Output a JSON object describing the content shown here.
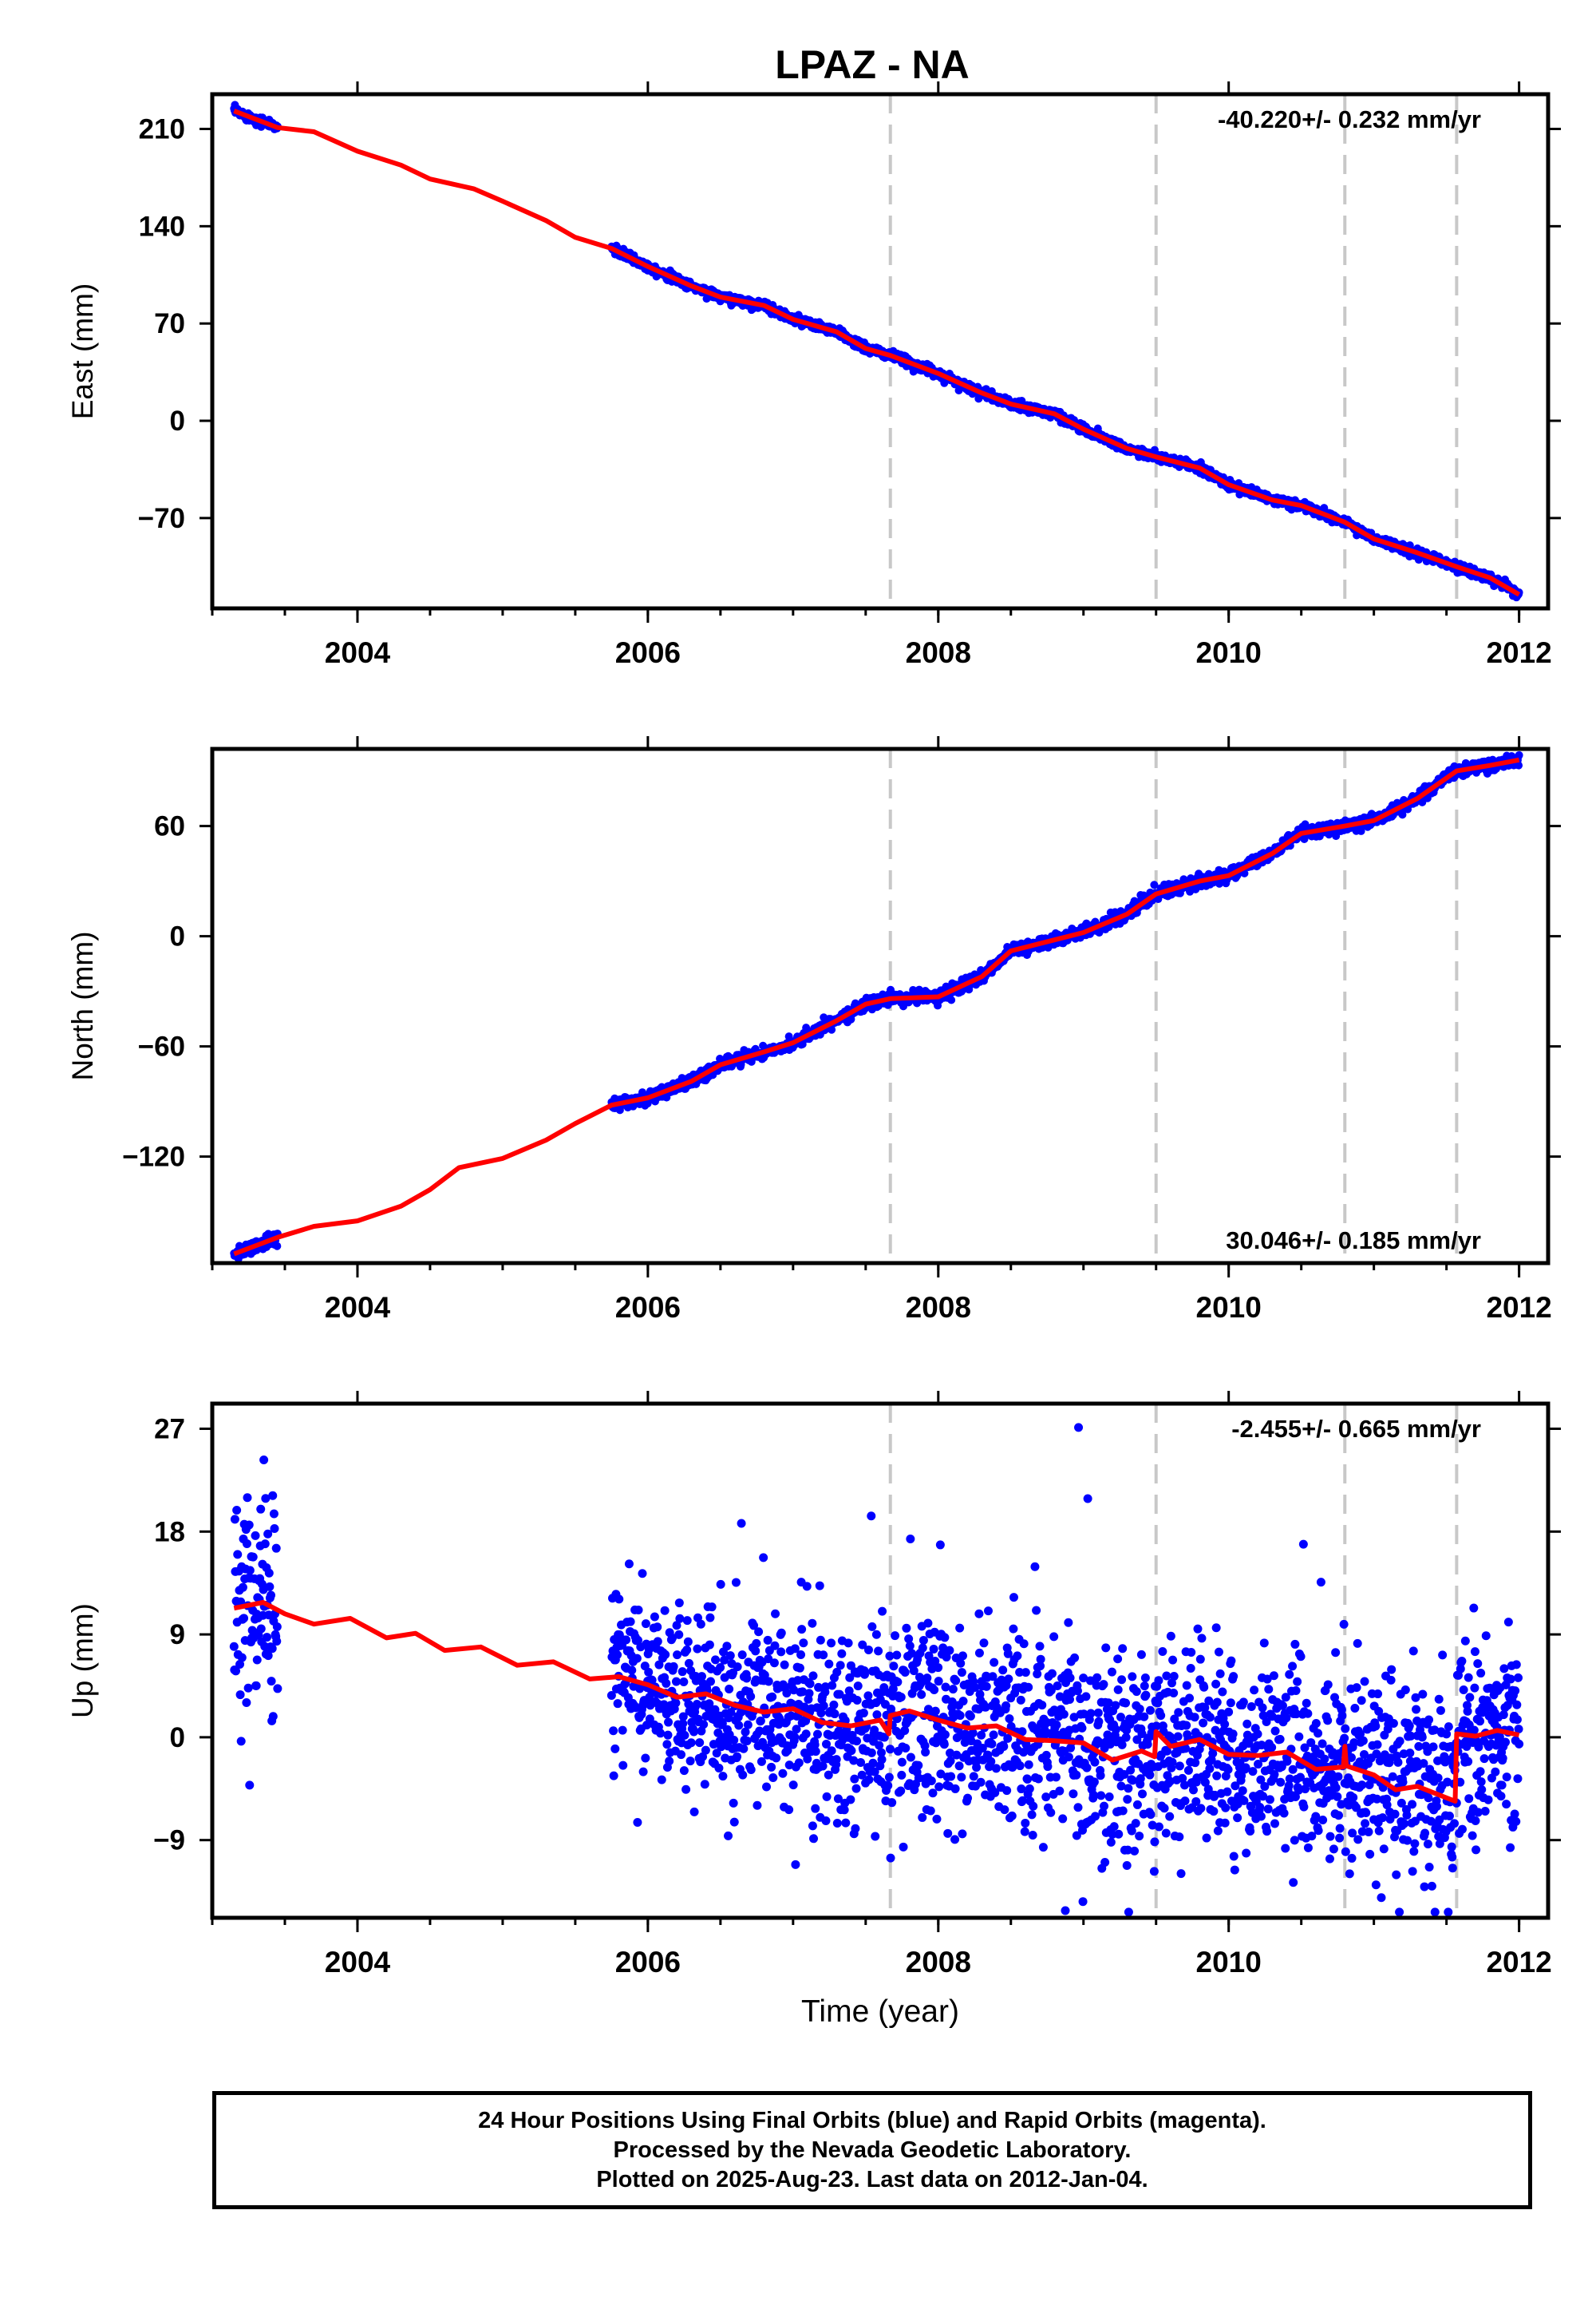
{
  "title": "LPAZ - NA",
  "colors": {
    "data": "#0000ff",
    "model": "#ff0000",
    "equipment_change": "#c8c8c8",
    "frame": "#000000"
  },
  "chart_data": [
    {
      "type": "scatter",
      "panel": "east",
      "ylabel": "East (mm)",
      "xlabel": "",
      "rate_label": "-40.220+/- 0.232 mm/yr",
      "xlim": [
        2003.0,
        2012.2
      ],
      "ylim": [
        -135,
        235
      ],
      "yticks": [
        210,
        140,
        70,
        0,
        -70
      ],
      "xticks": [
        2004,
        2006,
        2008,
        2010,
        2012
      ],
      "vlines": [
        2007.67,
        2009.5,
        2010.8,
        2011.57
      ],
      "segments": [
        {
          "start": 2003.15,
          "end": 2003.45,
          "y0": 224,
          "y1": 213,
          "noise": 1.6
        },
        {
          "start": 2005.75,
          "end": 2012.0,
          "y0": 124,
          "y1": -127,
          "noise": 1.6
        }
      ],
      "series": [
        {
          "name": "24 hour positions",
          "model": [
            [
              2003.15,
              223
            ],
            [
              2003.45,
              211
            ],
            [
              2003.7,
              208
            ],
            [
              2004.0,
              194
            ],
            [
              2004.3,
              184
            ],
            [
              2004.5,
              174
            ],
            [
              2004.8,
              167
            ],
            [
              2005.0,
              158
            ],
            [
              2005.3,
              144
            ],
            [
              2005.5,
              132
            ],
            [
              2005.75,
              124
            ],
            [
              2006.0,
              111
            ],
            [
              2006.3,
              97
            ],
            [
              2006.5,
              89
            ],
            [
              2006.8,
              83
            ],
            [
              2007.0,
              73
            ],
            [
              2007.3,
              64
            ],
            [
              2007.5,
              52
            ],
            [
              2007.67,
              47
            ],
            [
              2008.0,
              34
            ],
            [
              2008.3,
              20
            ],
            [
              2008.5,
              12
            ],
            [
              2008.8,
              5
            ],
            [
              2009.0,
              -6
            ],
            [
              2009.3,
              -20
            ],
            [
              2009.5,
              -26
            ],
            [
              2009.8,
              -34
            ],
            [
              2010.0,
              -46
            ],
            [
              2010.3,
              -57
            ],
            [
              2010.5,
              -61
            ],
            [
              2010.8,
              -73
            ],
            [
              2011.0,
              -85
            ],
            [
              2011.3,
              -95
            ],
            [
              2011.57,
              -105
            ],
            [
              2011.8,
              -113
            ],
            [
              2012.0,
              -125
            ]
          ]
        }
      ]
    },
    {
      "type": "scatter",
      "panel": "north",
      "ylabel": "North (mm)",
      "xlabel": "",
      "rate_label": "30.046+/- 0.185 mm/yr",
      "xlim": [
        2003.0,
        2012.2
      ],
      "ylim": [
        -178,
        102
      ],
      "yticks": [
        60,
        0,
        -60,
        -120
      ],
      "xticks": [
        2004,
        2006,
        2008,
        2010,
        2012
      ],
      "vlines": [
        2007.67,
        2009.5,
        2010.8,
        2011.57
      ],
      "segments": [
        {
          "start": 2003.15,
          "end": 2003.45,
          "y0": -173,
          "y1": -163,
          "noise": 1.6
        },
        {
          "start": 2005.75,
          "end": 2012.0,
          "y0": -92,
          "y1": 96,
          "noise": 1.6
        }
      ],
      "series": [
        {
          "name": "24 hour positions",
          "model": [
            [
              2003.15,
              -173
            ],
            [
              2003.45,
              -164
            ],
            [
              2003.7,
              -158
            ],
            [
              2004.0,
              -155
            ],
            [
              2004.3,
              -147
            ],
            [
              2004.5,
              -138
            ],
            [
              2004.7,
              -126
            ],
            [
              2005.0,
              -121
            ],
            [
              2005.3,
              -111
            ],
            [
              2005.5,
              -102
            ],
            [
              2005.75,
              -92
            ],
            [
              2006.0,
              -88
            ],
            [
              2006.3,
              -79
            ],
            [
              2006.5,
              -70
            ],
            [
              2006.8,
              -63
            ],
            [
              2007.0,
              -58
            ],
            [
              2007.3,
              -46
            ],
            [
              2007.5,
              -37
            ],
            [
              2007.67,
              -34
            ],
            [
              2008.0,
              -33
            ],
            [
              2008.3,
              -22
            ],
            [
              2008.5,
              -8
            ],
            [
              2008.8,
              -2
            ],
            [
              2009.0,
              2
            ],
            [
              2009.3,
              12
            ],
            [
              2009.5,
              23
            ],
            [
              2009.8,
              30
            ],
            [
              2010.0,
              33
            ],
            [
              2010.3,
              45
            ],
            [
              2010.5,
              56
            ],
            [
              2010.8,
              60
            ],
            [
              2011.0,
              63
            ],
            [
              2011.3,
              75
            ],
            [
              2011.57,
              90
            ],
            [
              2011.8,
              93
            ],
            [
              2012.0,
              96
            ]
          ]
        }
      ]
    },
    {
      "type": "scatter",
      "panel": "up",
      "ylabel": "Up (mm)",
      "xlabel": "Time (year)",
      "rate_label": "-2.455+/- 0.665 mm/yr",
      "xlim": [
        2003.0,
        2012.2
      ],
      "ylim": [
        -15.8,
        29.2
      ],
      "yticks": [
        27,
        18,
        9,
        0,
        -9
      ],
      "xticks": [
        2004,
        2006,
        2008,
        2010,
        2012
      ],
      "vlines": [
        2007.67,
        2009.5,
        2010.8,
        2011.57
      ],
      "segments": [
        {
          "start": 2003.15,
          "end": 2003.45,
          "y0": 14,
          "y1": 9,
          "noise": 5
        },
        {
          "start": 2005.75,
          "end": 2012.0,
          "y0": 4,
          "y1": -2,
          "noise": 4.2
        }
      ],
      "series": [
        {
          "name": "24 hour positions",
          "model": [
            [
              2003.15,
              11.3
            ],
            [
              2003.35,
              11.8
            ],
            [
              2003.5,
              10.8
            ],
            [
              2003.7,
              9.9
            ],
            [
              2003.95,
              10.4
            ],
            [
              2004.2,
              8.7
            ],
            [
              2004.4,
              9.1
            ],
            [
              2004.6,
              7.6
            ],
            [
              2004.85,
              7.9
            ],
            [
              2005.1,
              6.3
            ],
            [
              2005.35,
              6.6
            ],
            [
              2005.6,
              5.1
            ],
            [
              2005.8,
              5.3
            ],
            [
              2006.0,
              4.6
            ],
            [
              2006.2,
              3.5
            ],
            [
              2006.4,
              3.8
            ],
            [
              2006.6,
              2.8
            ],
            [
              2006.8,
              2.2
            ],
            [
              2007.0,
              2.5
            ],
            [
              2007.2,
              1.3
            ],
            [
              2007.4,
              1.0
            ],
            [
              2007.6,
              1.5
            ],
            [
              2007.66,
              0.3
            ],
            [
              2007.67,
              1.9
            ],
            [
              2007.8,
              2.3
            ],
            [
              2008.0,
              1.5
            ],
            [
              2008.2,
              0.8
            ],
            [
              2008.4,
              1.0
            ],
            [
              2008.6,
              -0.2
            ],
            [
              2008.8,
              -0.3
            ],
            [
              2009.0,
              -0.5
            ],
            [
              2009.2,
              -2.0
            ],
            [
              2009.4,
              -1.2
            ],
            [
              2009.49,
              -1.7
            ],
            [
              2009.5,
              0.5
            ],
            [
              2009.6,
              -0.8
            ],
            [
              2009.8,
              -0.2
            ],
            [
              2010.0,
              -1.5
            ],
            [
              2010.2,
              -1.6
            ],
            [
              2010.4,
              -1.3
            ],
            [
              2010.6,
              -2.8
            ],
            [
              2010.79,
              -2.6
            ],
            [
              2010.8,
              -0.8
            ],
            [
              2010.81,
              -2.5
            ],
            [
              2011.0,
              -3.3
            ],
            [
              2011.15,
              -4.6
            ],
            [
              2011.3,
              -4.3
            ],
            [
              2011.56,
              -5.6
            ],
            [
              2011.57,
              0.3
            ],
            [
              2011.7,
              0.1
            ],
            [
              2011.85,
              0.6
            ],
            [
              2012.0,
              0.2
            ]
          ]
        }
      ]
    }
  ],
  "footer": {
    "line1": "24 Hour Positions Using Final Orbits (blue) and Rapid Orbits (magenta).",
    "line2": "Processed by the Nevada Geodetic Laboratory.",
    "line3": "Plotted on 2025-Aug-23. Last data on 2012-Jan-04."
  }
}
